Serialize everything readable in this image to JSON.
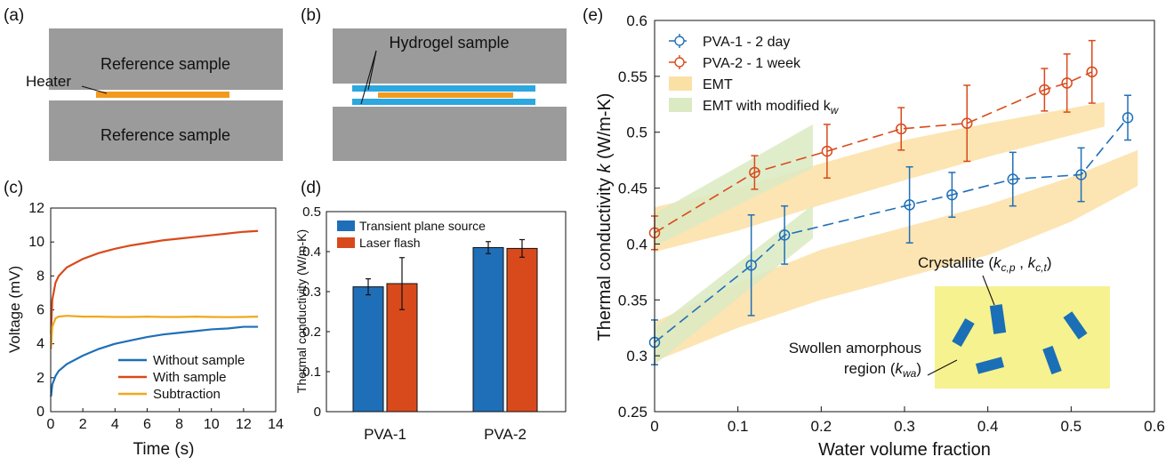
{
  "panels": {
    "a": {
      "letter": "(a)",
      "top_block": "Reference sample",
      "bottom_block": "Reference sample",
      "heater_label": "Heater",
      "colors": {
        "block": "#9b9b9b",
        "heater": "#f39a1e"
      }
    },
    "b": {
      "letter": "(b)",
      "sample_label": "Hydrogel sample",
      "colors": {
        "block": "#9b9b9b",
        "heater": "#f39a1e",
        "sample": "#2ca7df"
      }
    },
    "c": {
      "letter": "(c)"
    },
    "d": {
      "letter": "(d)"
    },
    "e": {
      "letter": "(e)",
      "inset": {
        "crystallite_label": "Crystallite (",
        "crystallite_sym1": "k",
        "crystallite_sub1": "c,p",
        "crystallite_sep": " , ",
        "crystallite_sym2": "k",
        "crystallite_sub2": "c,t",
        "crystallite_close": ")",
        "amorphous_line1": "Swollen amorphous",
        "amorphous_line2_pre": "region (",
        "amorphous_sym": "k",
        "amorphous_sub": "wa",
        "amorphous_close": ")",
        "colors": {
          "background": "#f6f28f",
          "crystal": "#1a6fb7"
        }
      }
    }
  },
  "chart_data": [
    {
      "id": "c",
      "type": "line",
      "xlabel": "Time (s)",
      "ylabel": "Voltage (mV)",
      "xlim": [
        0,
        14
      ],
      "ylim": [
        0,
        12
      ],
      "xticks": [
        "0",
        "2",
        "4",
        "6",
        "8",
        "10",
        "12",
        "14"
      ],
      "yticks": [
        "0",
        "2",
        "4",
        "6",
        "8",
        "10",
        "12"
      ],
      "legend_position": "bottom-right",
      "series": [
        {
          "name": "Without sample",
          "color": "#1f6fb8",
          "x": [
            0.02,
            0.1,
            0.3,
            0.5,
            1,
            2,
            3,
            4,
            5,
            6,
            7,
            8,
            9,
            10,
            11,
            12,
            12.9
          ],
          "y": [
            0.9,
            1.6,
            2.1,
            2.4,
            2.8,
            3.3,
            3.7,
            4.0,
            4.2,
            4.4,
            4.55,
            4.65,
            4.75,
            4.85,
            4.9,
            5.0,
            5.0
          ]
        },
        {
          "name": "With sample",
          "color": "#d84a1b",
          "x": [
            0.02,
            0.1,
            0.3,
            0.5,
            1,
            2,
            3,
            4,
            5,
            6,
            7,
            8,
            9,
            10,
            11,
            12,
            12.9
          ],
          "y": [
            4.6,
            6.6,
            7.6,
            8.0,
            8.5,
            9.0,
            9.35,
            9.6,
            9.8,
            9.95,
            10.1,
            10.2,
            10.3,
            10.4,
            10.5,
            10.6,
            10.65
          ]
        },
        {
          "name": "Subtraction",
          "color": "#f0a81c",
          "x": [
            0.02,
            0.1,
            0.3,
            0.5,
            1,
            2,
            3,
            4,
            5,
            6,
            7,
            8,
            9,
            10,
            11,
            12,
            12.9
          ],
          "y": [
            3.7,
            5.0,
            5.5,
            5.6,
            5.65,
            5.6,
            5.6,
            5.58,
            5.58,
            5.6,
            5.58,
            5.58,
            5.6,
            5.58,
            5.57,
            5.58,
            5.6
          ]
        }
      ]
    },
    {
      "id": "d",
      "type": "bar",
      "ylabel": "Thermal conductivity (W/m-K)",
      "ylim": [
        0,
        0.5
      ],
      "yticks": [
        "0",
        "0.1",
        "0.2",
        "0.3",
        "0.4",
        "0.5"
      ],
      "categories": [
        "PVA-1",
        "PVA-2"
      ],
      "legend_position": "top-left",
      "series": [
        {
          "name": "Transient plane source",
          "color": "#1f6fb8",
          "values": [
            0.312,
            0.41
          ],
          "errors": [
            0.02,
            0.015
          ]
        },
        {
          "name": "Laser flash",
          "color": "#d84a1b",
          "values": [
            0.32,
            0.408
          ],
          "errors": [
            0.065,
            0.022
          ]
        }
      ]
    },
    {
      "id": "e",
      "type": "scatter",
      "xlabel": "Water volume fraction",
      "ylabel_pre": "Thermal conductivity ",
      "ylabel_sym": "k",
      "ylabel_post": " (W/m-K)",
      "xlim": [
        0,
        0.6
      ],
      "ylim": [
        0.25,
        0.6
      ],
      "xticks": [
        "0",
        "0.1",
        "0.2",
        "0.3",
        "0.4",
        "0.5",
        "0.6"
      ],
      "yticks": [
        "0.25",
        "0.3",
        "0.35",
        "0.4",
        "0.45",
        "0.5",
        "0.55",
        "0.6"
      ],
      "legend_position": "top-left",
      "series": [
        {
          "name": "PVA-1 - 2 day",
          "color": "#1f6fb8",
          "x": [
            0,
            0.116,
            0.156,
            0.306,
            0.357,
            0.43,
            0.512,
            0.568
          ],
          "y": [
            0.312,
            0.381,
            0.408,
            0.435,
            0.444,
            0.458,
            0.462,
            0.513
          ],
          "errors": [
            0.02,
            0.045,
            0.026,
            0.034,
            0.02,
            0.024,
            0.024,
            0.02
          ]
        },
        {
          "name": "PVA-2 - 1 week",
          "color": "#d84a1b",
          "x": [
            0,
            0.12,
            0.207,
            0.296,
            0.375,
            0.468,
            0.495,
            0.525
          ],
          "y": [
            0.41,
            0.464,
            0.483,
            0.503,
            0.508,
            0.538,
            0.544,
            0.554
          ],
          "errors": [
            0.015,
            0.015,
            0.024,
            0.019,
            0.034,
            0.019,
            0.026,
            0.028
          ]
        }
      ],
      "bands": [
        {
          "name": "EMT",
          "color": "#fbe0a6",
          "polygons": [
            {
              "upper": [
                [
                  0,
                  0.433
                ],
                [
                  0.1,
                  0.45
                ],
                [
                  0.2,
                  0.472
                ],
                [
                  0.3,
                  0.493
                ],
                [
                  0.4,
                  0.508
                ],
                [
                  0.54,
                  0.527
                ]
              ],
              "lower": [
                [
                  0,
                  0.393
                ],
                [
                  0.1,
                  0.412
                ],
                [
                  0.2,
                  0.435
                ],
                [
                  0.3,
                  0.457
                ],
                [
                  0.4,
                  0.478
                ],
                [
                  0.54,
                  0.505
                ]
              ]
            },
            {
              "upper": [
                [
                  0,
                  0.33
                ],
                [
                  0.1,
                  0.365
                ],
                [
                  0.2,
                  0.395
                ],
                [
                  0.3,
                  0.415
                ],
                [
                  0.4,
                  0.435
                ],
                [
                  0.5,
                  0.46
                ],
                [
                  0.58,
                  0.484
                ]
              ],
              "lower": [
                [
                  0,
                  0.295
                ],
                [
                  0.1,
                  0.325
                ],
                [
                  0.2,
                  0.35
                ],
                [
                  0.3,
                  0.37
                ],
                [
                  0.4,
                  0.39
                ],
                [
                  0.5,
                  0.42
                ],
                [
                  0.58,
                  0.452
                ]
              ]
            }
          ]
        },
        {
          "name": "EMT with modified k",
          "name_sub": "w",
          "color": "#dbeac2",
          "polygons": [
            {
              "upper": [
                [
                  0,
                  0.427
                ],
                [
                  0.19,
                  0.507
                ]
              ],
              "lower": [
                [
                  0,
                  0.398
                ],
                [
                  0.19,
                  0.468
                ]
              ]
            },
            {
              "upper": [
                [
                  0,
                  0.325
                ],
                [
                  0.19,
                  0.435
                ]
              ],
              "lower": [
                [
                  0,
                  0.292
                ],
                [
                  0.19,
                  0.405
                ]
              ]
            }
          ]
        }
      ]
    }
  ]
}
